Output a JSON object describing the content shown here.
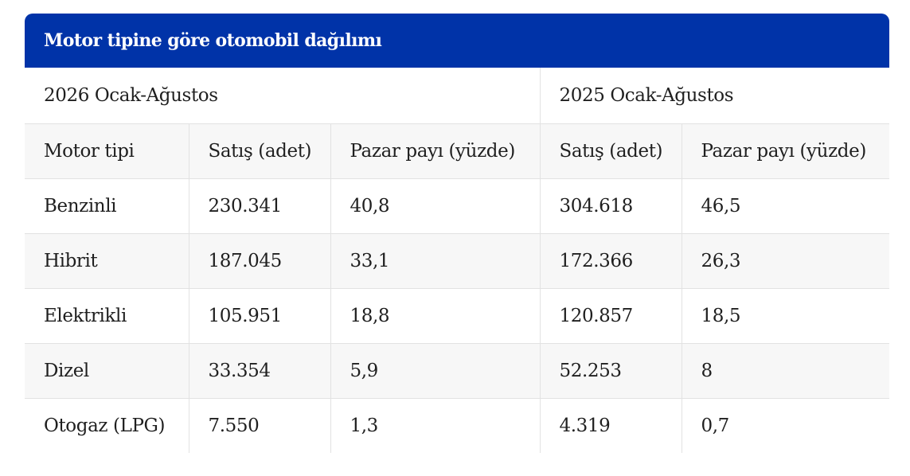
{
  "title": "Motor tipine göre otomobil dağılımı",
  "periods": [
    "2026 Ocak-Ağustos",
    "2025 Ocak-Ağustos"
  ],
  "headers": [
    "Motor tipi",
    "Satış (adet)",
    "Pazar payı (yüzde)",
    "Satış (adet)",
    "Pazar payı (yüzde)"
  ],
  "rows": [
    [
      "Benzinli",
      "230.341",
      "40,8",
      "304.618",
      "46,5"
    ],
    [
      "Hibrit",
      "187.045",
      "33,1",
      "172.366",
      "26,3"
    ],
    [
      "Elektrikli",
      "105.951",
      "18,8",
      "120.857",
      "18,5"
    ],
    [
      "Dizel",
      "33.354",
      "5,9",
      "52.253",
      "8"
    ],
    [
      "Otogaz (LPG)",
      "7.550",
      "1,3",
      "4.319",
      "0,7"
    ]
  ],
  "colors": {
    "title_background": "#0033a8",
    "title_text": "#ffffff",
    "stripe": "#f7f7f7",
    "border": "#e2e2e2"
  }
}
